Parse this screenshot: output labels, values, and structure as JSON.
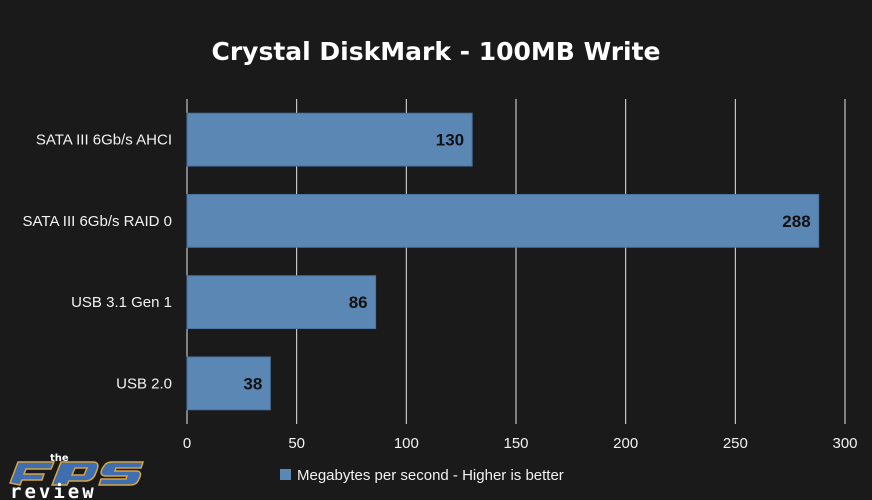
{
  "colors": {
    "background": "#1a1a1a",
    "bar": "#5b87b5",
    "bar_stroke": "#4a73a0",
    "grid": "#e6e6e6",
    "text": "#f2f2f2",
    "data_label": "#111111",
    "logo_orange": "#d9a441",
    "logo_blue": "#3f6fb0"
  },
  "chart_data": {
    "type": "bar",
    "orientation": "horizontal",
    "title": "Crystal DiskMark - 100MB Write",
    "xlabel": "",
    "ylabel": "",
    "categories": [
      "SATA III 6Gb/s AHCI",
      "SATA III 6Gb/s RAID 0",
      "USB 3.1 Gen 1",
      "USB 2.0"
    ],
    "series": [
      {
        "name": "Megabytes per second - Higher is better",
        "values": [
          130,
          288,
          86,
          38
        ]
      }
    ],
    "xlim": [
      0,
      300
    ],
    "ticks": [
      0,
      50,
      100,
      150,
      200,
      250,
      300
    ],
    "grid": true,
    "legend": "bottom-center",
    "data_labels": true
  },
  "logo": {
    "icon": "fps-review-logo",
    "the": "the",
    "fps": "FPS",
    "review": "review"
  }
}
